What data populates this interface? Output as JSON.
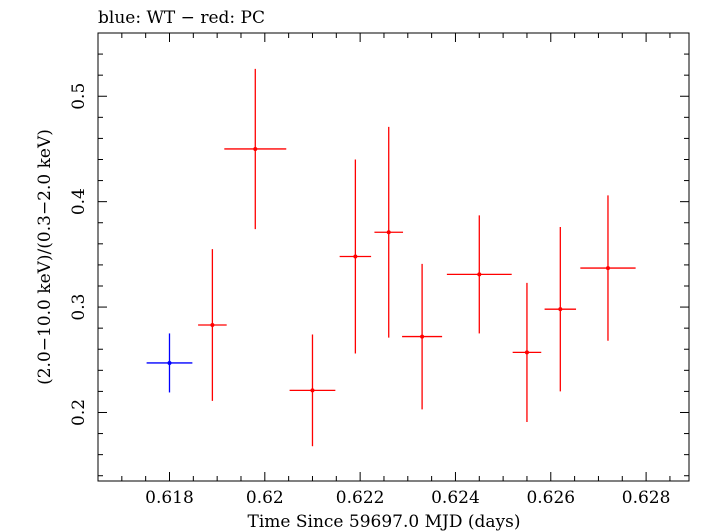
{
  "chart_data": {
    "type": "scatter",
    "title": "blue: WT − red: PC",
    "xlabel": "Time Since 59697.0 MJD (days)",
    "ylabel": "(2.0−10.0 keV)/(0.3−2.0 keV)",
    "xlim": [
      0.6165,
      0.6289
    ],
    "ylim": [
      0.135,
      0.56
    ],
    "x_ticks": [
      0.618,
      0.62,
      0.622,
      0.624,
      0.626,
      0.628
    ],
    "x_tick_labels": [
      "0.618",
      "0.62",
      "0.622",
      "0.624",
      "0.626",
      "0.628"
    ],
    "y_ticks": [
      0.2,
      0.3,
      0.4,
      0.5
    ],
    "y_tick_labels": [
      "0.2",
      "0.3",
      "0.4",
      "0.5"
    ],
    "grid": false,
    "series": [
      {
        "name": "WT",
        "color": "#0000ff",
        "points": [
          {
            "x": 0.618,
            "y": 0.247,
            "xerr": 0.00048,
            "yerr_lo": 0.028,
            "yerr_hi": 0.028
          }
        ]
      },
      {
        "name": "PC",
        "color": "#ff0000",
        "points": [
          {
            "x": 0.6189,
            "y": 0.283,
            "xerr": 0.0003,
            "yerr_lo": 0.072,
            "yerr_hi": 0.072
          },
          {
            "x": 0.6198,
            "y": 0.45,
            "xerr": 0.00065,
            "yerr_lo": 0.076,
            "yerr_hi": 0.076
          },
          {
            "x": 0.621,
            "y": 0.221,
            "xerr": 0.00048,
            "yerr_lo": 0.053,
            "yerr_hi": 0.053
          },
          {
            "x": 0.6219,
            "y": 0.348,
            "xerr": 0.00033,
            "yerr_lo": 0.092,
            "yerr_hi": 0.092
          },
          {
            "x": 0.6226,
            "y": 0.371,
            "xerr": 0.0003,
            "yerr_lo": 0.1,
            "yerr_hi": 0.1
          },
          {
            "x": 0.6233,
            "y": 0.272,
            "xerr": 0.00042,
            "yerr_lo": 0.069,
            "yerr_hi": 0.069
          },
          {
            "x": 0.6245,
            "y": 0.331,
            "xerr": 0.00068,
            "yerr_lo": 0.056,
            "yerr_hi": 0.056
          },
          {
            "x": 0.6255,
            "y": 0.257,
            "xerr": 0.0003,
            "yerr_lo": 0.066,
            "yerr_hi": 0.066
          },
          {
            "x": 0.6262,
            "y": 0.298,
            "xerr": 0.00033,
            "yerr_lo": 0.078,
            "yerr_hi": 0.078
          },
          {
            "x": 0.6272,
            "y": 0.337,
            "xerr": 0.00058,
            "yerr_lo": 0.069,
            "yerr_hi": 0.069
          }
        ]
      }
    ]
  }
}
